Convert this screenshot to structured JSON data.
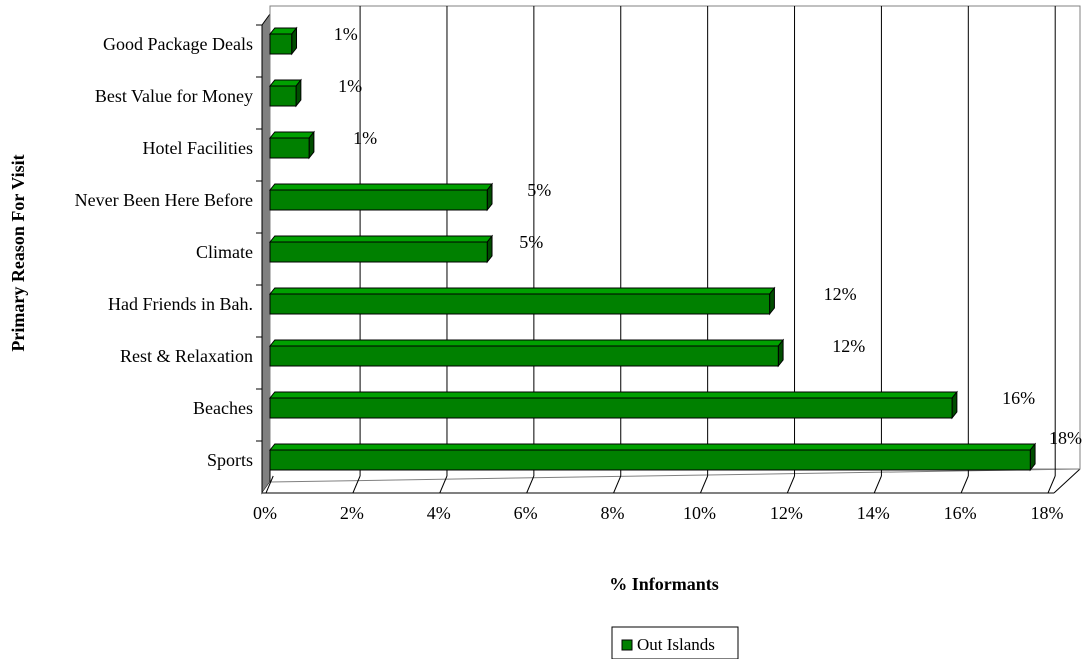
{
  "chart_data": {
    "type": "bar",
    "orientation": "horizontal",
    "title": "",
    "xlabel": "% Informants",
    "ylabel": "Primary Reason For Visit",
    "xlim": [
      0,
      18
    ],
    "x_ticks": [
      "0%",
      "2%",
      "4%",
      "6%",
      "8%",
      "10%",
      "12%",
      "14%",
      "16%",
      "18%"
    ],
    "categories": [
      "Good Package Deals",
      "Best Value for Money",
      "Hotel Facilities",
      "Never Been Here Before",
      "Climate",
      "Had Friends in Bah.",
      "Rest & Relaxation",
      "Beaches",
      "Sports"
    ],
    "series": [
      {
        "name": "Out Islands",
        "color": "#008000",
        "values": [
          0.5,
          0.6,
          0.9,
          5.0,
          5.0,
          11.5,
          11.7,
          15.7,
          17.5
        ],
        "labels": [
          "1%",
          "1%",
          "1%",
          "5%",
          "5%",
          "12%",
          "12%",
          "16%",
          "18%"
        ]
      }
    ],
    "grid": true,
    "style": "3d",
    "legend": "bottom-center"
  }
}
